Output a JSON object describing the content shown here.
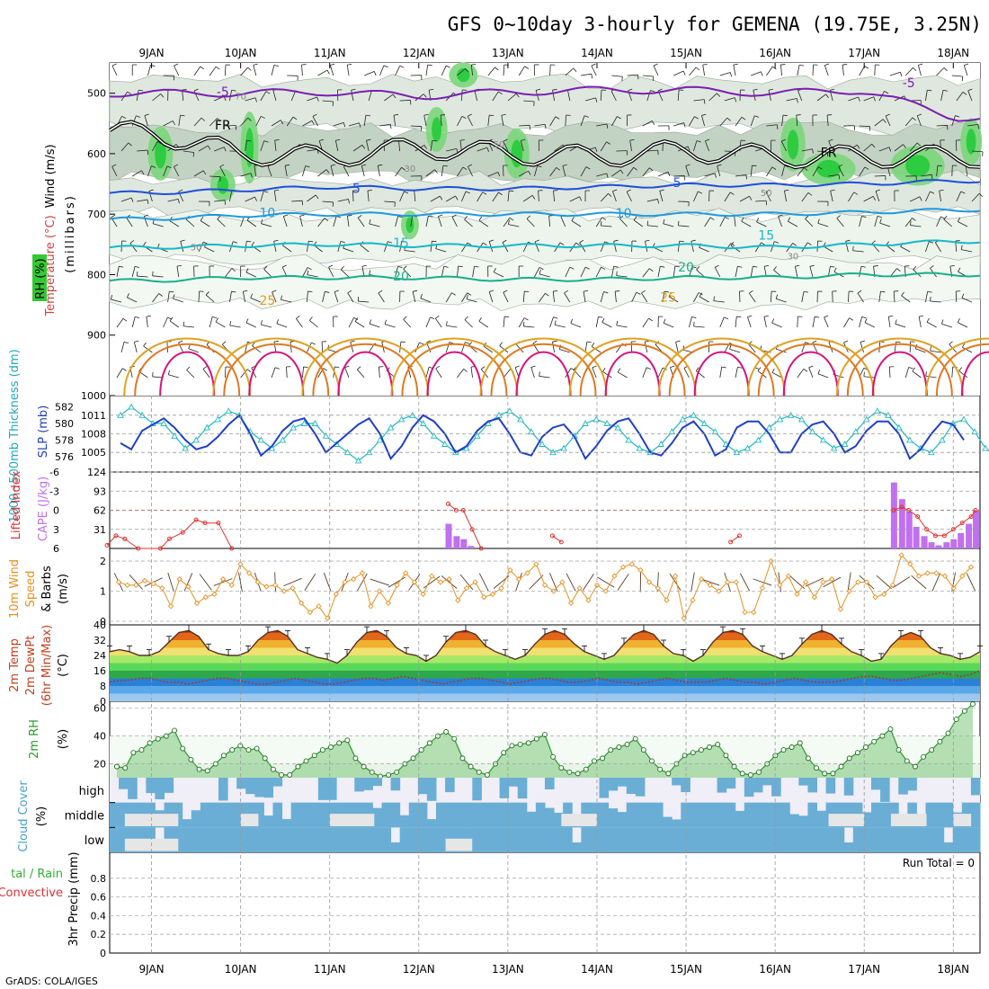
{
  "title": "GFS 0~10day 3-hourly for GEMENA (19.75E, 3.25N)",
  "footer": "GrADS: COLA/IGES",
  "run_total": "Run Total = 0",
  "date_labels": [
    "9JAN",
    "10JAN",
    "11JAN",
    "12JAN",
    "13JAN",
    "14JAN",
    "15JAN",
    "16JAN",
    "17JAN",
    "18JAN"
  ],
  "panel_labels": {
    "wind": "Wind (m/s)",
    "temperature": "Temperature (°C)",
    "rh": "RH (%)",
    "millibars": "(millibars)",
    "slp": "SLP (mb)",
    "thickness": "1000~500mb Thickness (dm)",
    "lifted_index": "Lifted Index",
    "cape": "CAPE (J/kg)",
    "wind10_a": "10m Wind",
    "wind10_b": "Speed",
    "wind10_c": "& Barbs",
    "wind10_units": "(m/s)",
    "t2_a": "2m Temp",
    "t2_b": "2m DewPt",
    "t2_c": "(6hr Min/Max)",
    "t2_units": "(°C)",
    "rh2": "2m RH",
    "rh2_units": "(%)",
    "cloud": "Cloud Cover",
    "cloud_units": "(%)",
    "precip_a": "tal / Rain",
    "precip_b": "Convective",
    "precip_c": "3hr Precip (mm)"
  },
  "colors": {
    "temp_minus5": "#7a1fb0",
    "temp_5": "#1f4fd8",
    "temp_10": "#1e9ae0",
    "temp_15": "#17b8c8",
    "temp_20": "#17b088",
    "temp_25": "#e0a020",
    "temp_30": "#e07820",
    "temp_35": "#d8107a",
    "slp": "#1f3fc8",
    "thickness": "#20b8c0",
    "cape": "#c070f0",
    "lifted_index": "#e03030",
    "wind10": "#e89020",
    "rh2": "#2a9a2a",
    "cloud": "#6aaed6",
    "rh_mid": "#7bd67b",
    "rh_high": "#2ecc40"
  },
  "chart_data": [
    {
      "type": "line",
      "title": "Temperature / RH / Wind cross-section",
      "ylabel": "millibars",
      "y_ticks": [
        500,
        600,
        700,
        800,
        900,
        1000
      ],
      "ylim": [
        1000,
        450
      ],
      "x": [
        "9JAN",
        "10JAN",
        "11JAN",
        "12JAN",
        "13JAN",
        "14JAN",
        "15JAN",
        "16JAN",
        "17JAN",
        "18JAN"
      ],
      "contour_labels": [
        "-5",
        "FR",
        "5",
        "10",
        "15",
        "20",
        "25",
        "50",
        "30"
      ],
      "series": [
        {
          "name": "-5",
          "level_mb": [
            500,
            500,
            498,
            505,
            498,
            495,
            495,
            500,
            495,
            540
          ]
        },
        {
          "name": "FR",
          "level_mb": [
            565,
            600,
            605,
            590,
            600,
            605,
            595,
            605,
            605,
            605
          ]
        },
        {
          "name": "5",
          "level_mb": [
            665,
            660,
            655,
            658,
            658,
            655,
            652,
            652,
            650,
            645
          ]
        },
        {
          "name": "10",
          "level_mb": [
            708,
            702,
            700,
            700,
            700,
            700,
            700,
            700,
            697,
            693
          ]
        },
        {
          "name": "15",
          "level_mb": [
            755,
            752,
            750,
            752,
            752,
            752,
            752,
            755,
            750,
            745
          ]
        },
        {
          "name": "20",
          "level_mb": [
            810,
            805,
            805,
            805,
            808,
            808,
            805,
            805,
            800,
            800
          ]
        }
      ]
    },
    {
      "type": "line",
      "title": "SLP / 1000-500mb Thickness",
      "y_ticks_left": [
        576,
        578,
        580,
        582
      ],
      "y_ticks_right": [
        1005,
        1008,
        1011
      ],
      "series": [
        {
          "name": "SLP",
          "values": [
            1006.5,
            1005.5,
            1008.5,
            1009.5,
            1010.5,
            1009,
            1007,
            1005.5,
            1006,
            1007.5,
            1009.5,
            1011,
            1008,
            1004.5,
            1006,
            1008.5,
            1010,
            1010.5,
            1008,
            1005,
            1006.5,
            1008,
            1009.5,
            1010.5,
            1008,
            1004,
            1006,
            1009,
            1011,
            1010,
            1008,
            1005,
            1006,
            1008.5,
            1010,
            1010.5,
            1008,
            1005,
            1004.5,
            1007.5,
            1009,
            1009.5,
            1007.5,
            1004,
            1006,
            1008.5,
            1010,
            1010.5,
            1008,
            1005,
            1004.5,
            1006.5,
            1009,
            1010,
            1008,
            1004.5,
            1005.5,
            1009,
            1010,
            1010,
            1008,
            1005,
            1005,
            1008,
            1009.5,
            1010,
            1008,
            1005,
            1006,
            1008.5,
            1010,
            1010,
            1008,
            1004,
            1005.5,
            1008,
            1010,
            1009.5,
            1007
          ]
        },
        {
          "name": "Thickness",
          "values": [
            581,
            582,
            581,
            580,
            580,
            578.5,
            577,
            578,
            579.5,
            580.5,
            581.5,
            581,
            579,
            578,
            577,
            578,
            579.5,
            580,
            580,
            578.5,
            577.5,
            576.5,
            575.5,
            576.5,
            578,
            579.5,
            580.5,
            581,
            580,
            578.5,
            577.5,
            576.5,
            577,
            578.5,
            580,
            581,
            581.5,
            580.5,
            579,
            577.5,
            576.5,
            577,
            578.5,
            580,
            580.5,
            580,
            579.5,
            578,
            577,
            576.5,
            577.5,
            579,
            580.5,
            581,
            580,
            579,
            577.5,
            576.5,
            577,
            578,
            579.5,
            580.5,
            581,
            580.5,
            579,
            578,
            577,
            577.5,
            579,
            580.5,
            581.5,
            581,
            579.5,
            578,
            577,
            576.5,
            578,
            580,
            580.5,
            579,
            577,
            576
          ]
        }
      ]
    },
    {
      "type": "bar",
      "title": "Lifted Index / CAPE",
      "y_ticks_left": [
        6,
        3,
        0,
        -3,
        -6
      ],
      "y_ticks_right": [
        31,
        62,
        93,
        124
      ],
      "series": [
        {
          "name": "CAPE",
          "points": [
            [
              12.33,
              40
            ],
            [
              12.42,
              20
            ],
            [
              12.5,
              15
            ],
            [
              12.58,
              4
            ],
            [
              17.33,
              107
            ],
            [
              17.42,
              80
            ],
            [
              17.5,
              60
            ],
            [
              17.58,
              35
            ],
            [
              17.67,
              20
            ],
            [
              17.75,
              10
            ],
            [
              17.83,
              5
            ],
            [
              17.92,
              10
            ],
            [
              18.0,
              15
            ],
            [
              18.08,
              25
            ],
            [
              18.17,
              40
            ],
            [
              18.25,
              62
            ]
          ]
        },
        {
          "name": "Lifted Index",
          "points": [
            [
              8.5,
              5.5
            ],
            [
              8.6,
              4
            ],
            [
              8.7,
              4.5
            ],
            [
              8.85,
              6
            ],
            [
              9.1,
              6
            ],
            [
              9.2,
              4.5
            ],
            [
              9.35,
              3.5
            ],
            [
              9.5,
              1.5
            ],
            [
              9.6,
              2
            ],
            [
              9.75,
              2
            ],
            [
              9.9,
              6
            ],
            [
              12.33,
              -1
            ],
            [
              12.42,
              0
            ],
            [
              12.5,
              0
            ],
            [
              12.6,
              3
            ],
            [
              12.7,
              6
            ],
            [
              13.5,
              4
            ],
            [
              13.6,
              5
            ],
            [
              15.5,
              5
            ],
            [
              15.6,
              4
            ],
            [
              17.33,
              0
            ],
            [
              17.42,
              -0.5
            ],
            [
              17.5,
              0
            ],
            [
              17.6,
              1
            ],
            [
              17.7,
              3
            ],
            [
              17.8,
              4
            ],
            [
              17.9,
              4
            ],
            [
              18.0,
              3
            ],
            [
              18.1,
              2
            ],
            [
              18.2,
              1
            ],
            [
              18.25,
              0
            ]
          ]
        }
      ]
    },
    {
      "type": "line",
      "title": "10m Wind Speed",
      "ylabel": "m/s",
      "ylim": [
        0,
        2.3
      ],
      "y_ticks": [
        0,
        1,
        2
      ],
      "series": [
        {
          "name": "Speed",
          "values": [
            1.3,
            1.2,
            1.2,
            1.35,
            1.25,
            1.1,
            0.5,
            1.4,
            1.15,
            0.6,
            0.8,
            0.9,
            1.4,
            1.2,
            1.9,
            1.6,
            1.3,
            1.15,
            1.2,
            1.0,
            1.1,
            0.6,
            0.3,
            0.5,
            0.1,
            0.9,
            1.3,
            1.4,
            1.6,
            0.5,
            1.0,
            0.6,
            1.2,
            1.6,
            1.3,
            0.9,
            1.5,
            1.3,
            1.4,
            0.7,
            1.1,
            1.3,
            0.8,
            0.9,
            1.1,
            1.7,
            1.4,
            1.6,
            1.9,
            1.2,
            1.0,
            1.3,
            0.6,
            1.1,
            0.7,
            1.2,
            1.0,
            1.5,
            1.8,
            1.9,
            1.7,
            1.3,
            1.1,
            0.7,
            1.5,
            0.1,
            0.7,
            1.4,
            1.2,
            1.0,
            1.3,
            1.3,
            0.3,
            0.3,
            1.1,
            2.0,
            1.2,
            1.5,
            0.9,
            1.3,
            0.8,
            1.3,
            1.4,
            0.4,
            1.0,
            1.3,
            1.3,
            0.8,
            0.9,
            1.2,
            2.2,
            1.9,
            1.5,
            1.6,
            1.6,
            1.5,
            1.1,
            1.5,
            1.8
          ]
        }
      ]
    },
    {
      "type": "area",
      "title": "2m Temp / 2m DewPt",
      "ylabel": "°C",
      "ylim": [
        0,
        40
      ],
      "y_ticks": [
        0,
        8,
        16,
        24,
        32,
        40
      ],
      "series": [
        {
          "name": "2m Temp",
          "values": [
            26,
            27,
            26,
            24,
            24,
            26,
            31,
            36,
            37,
            34,
            27,
            25,
            24,
            24,
            26,
            32,
            36,
            37,
            34,
            27,
            25,
            23,
            22,
            20,
            24,
            31,
            36,
            37,
            34,
            28,
            25,
            24,
            21,
            24,
            31,
            36,
            37,
            35,
            29,
            26,
            24,
            22,
            24,
            30,
            35,
            37,
            35,
            30,
            26,
            24,
            22,
            24,
            30,
            35,
            37,
            35,
            29,
            25,
            24,
            21,
            24,
            31,
            36,
            37,
            35,
            29,
            26,
            24,
            22,
            24,
            30,
            35,
            37,
            35,
            30,
            26,
            24,
            21,
            22,
            29,
            34,
            36,
            34,
            28,
            25,
            24,
            22,
            23,
            26
          ]
        },
        {
          "name": "2m DewPt",
          "values": [
            10,
            11,
            11,
            12,
            12,
            11,
            10,
            10,
            9,
            10,
            11,
            12,
            12,
            11,
            10,
            9,
            9,
            10,
            11,
            12,
            11,
            10,
            9,
            9,
            10,
            11,
            12,
            12,
            11,
            12,
            13,
            12,
            11,
            10,
            9,
            10,
            11,
            12,
            12,
            11,
            10,
            9,
            10,
            11,
            12,
            12,
            11,
            10,
            10,
            11,
            12,
            11,
            10,
            10,
            9,
            10,
            11,
            12,
            11,
            10,
            10,
            10,
            11,
            12,
            11,
            10,
            10,
            9,
            10,
            11,
            12,
            11,
            10,
            10,
            10,
            11,
            12,
            13,
            13,
            12,
            11,
            11,
            12,
            13,
            14,
            15,
            14,
            13,
            14,
            16
          ]
        }
      ]
    },
    {
      "type": "area",
      "title": "2m RH",
      "ylabel": "%",
      "ylim": [
        10,
        65
      ],
      "y_ticks": [
        20,
        40,
        60
      ],
      "series": [
        {
          "name": "2m RH",
          "values": [
            18,
            17,
            28,
            30,
            35,
            38,
            40,
            44,
            31,
            23,
            16,
            15,
            20,
            26,
            30,
            33,
            30,
            31,
            24,
            16,
            12,
            12,
            18,
            22,
            26,
            30,
            32,
            35,
            37,
            24,
            18,
            14,
            11,
            12,
            14,
            20,
            24,
            30,
            35,
            40,
            43,
            38,
            24,
            18,
            14,
            12,
            20,
            28,
            33,
            34,
            35,
            38,
            41,
            25,
            17,
            14,
            13,
            16,
            22,
            24,
            30,
            32,
            34,
            38,
            30,
            22,
            16,
            13,
            20,
            26,
            28,
            30,
            32,
            34,
            26,
            18,
            13,
            12,
            14,
            20,
            26,
            30,
            32,
            35,
            24,
            17,
            13,
            13,
            18,
            24,
            28,
            32,
            36,
            40,
            45,
            30,
            22,
            18,
            25,
            30,
            36,
            42,
            52,
            58,
            63
          ]
        }
      ]
    },
    {
      "type": "heatmap",
      "title": "Cloud Cover",
      "y_categories": [
        "high",
        "middle",
        "low"
      ],
      "y_ticks": [
        "high",
        "middle",
        "low"
      ]
    },
    {
      "type": "bar",
      "title": "3hr Precip",
      "ylabel": "mm",
      "ylim": [
        0,
        1.0
      ],
      "y_ticks": [
        0,
        0.2,
        0.4,
        0.6,
        0.8
      ],
      "values": []
    }
  ]
}
